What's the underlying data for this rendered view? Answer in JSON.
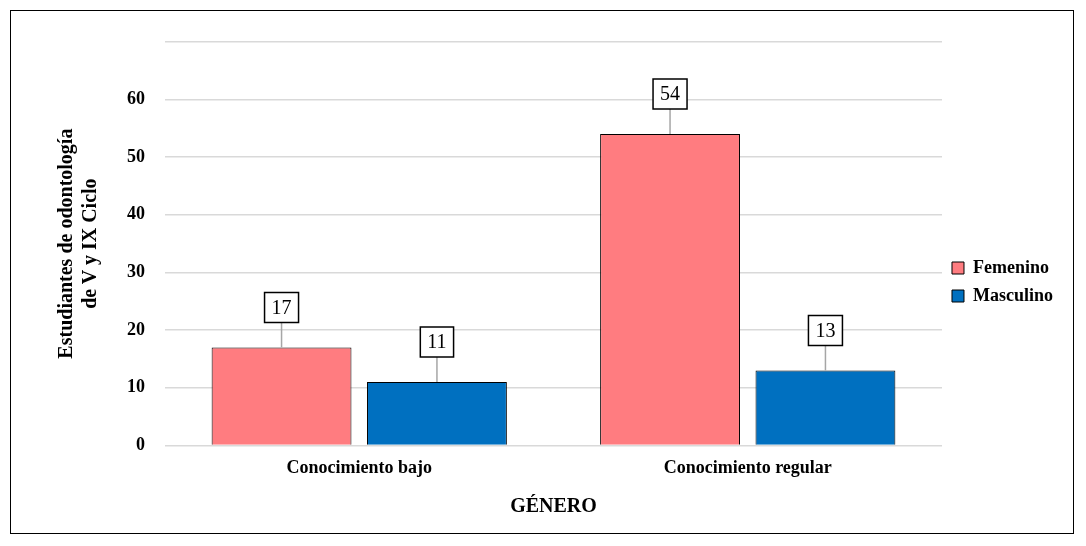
{
  "chart_data": {
    "type": "bar",
    "xlabel": "GÉNERO",
    "ylabel": "Estudiantes de odontología de V y IX Ciclo",
    "categories": [
      "Conocimiento bajo",
      "Conocimiento regular"
    ],
    "series": [
      {
        "name": "Femenino",
        "color": "#ff7c80",
        "values": [
          17,
          54
        ]
      },
      {
        "name": "Masculino",
        "color": "#0070c0",
        "values": [
          11,
          13
        ]
      }
    ],
    "ylim": [
      0,
      70
    ],
    "yticks": [
      0,
      10,
      20,
      30,
      40,
      50,
      60,
      {
        "value": 70,
        "label": null
      }
    ],
    "grid": "y",
    "legend": "right",
    "data_labels": true
  }
}
